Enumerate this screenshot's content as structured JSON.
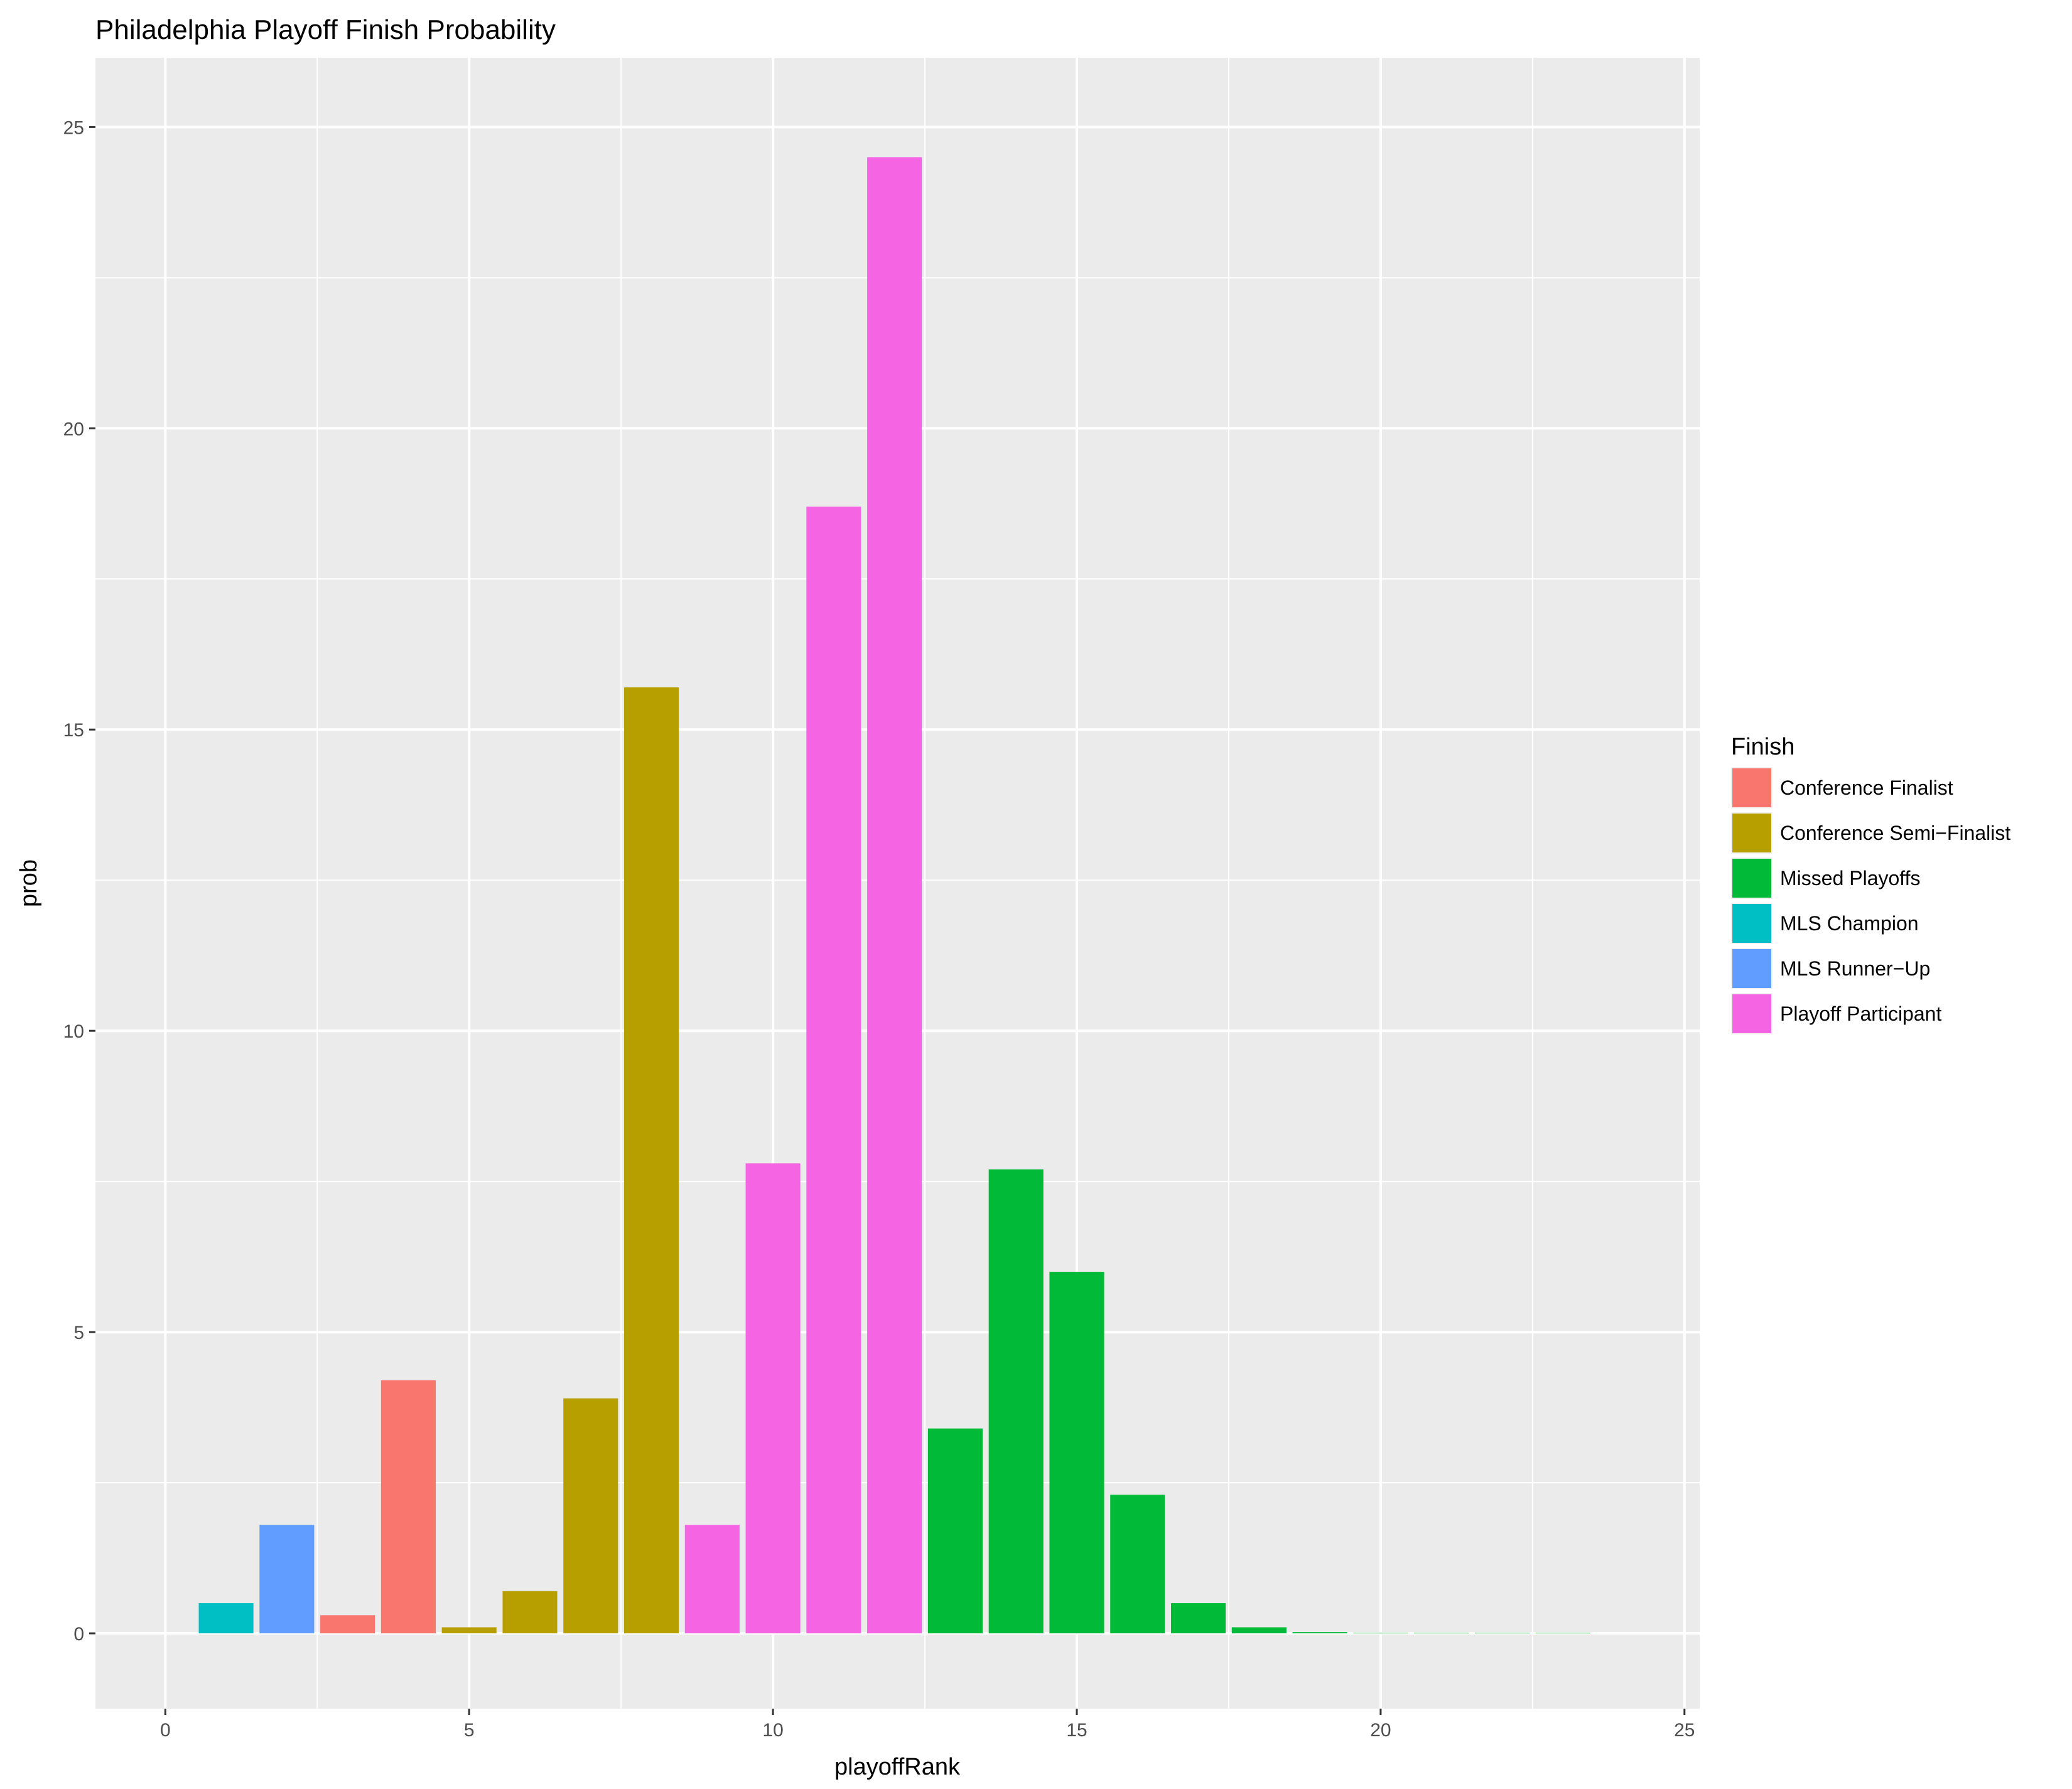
{
  "chart_data": {
    "type": "bar",
    "title": "Philadelphia Playoff Finish Probability",
    "xlabel": "playoffRank",
    "ylabel": "prob",
    "xlim": [
      -1.15,
      25.25
    ],
    "ylim": [
      -1.25,
      26.15
    ],
    "x_ticks": [
      0,
      5,
      10,
      15,
      20,
      25
    ],
    "y_ticks": [
      0,
      5,
      10,
      15,
      20,
      25
    ],
    "grid": true,
    "legend": {
      "title": "Finish",
      "position": "right",
      "entries": [
        {
          "label": "Conference Finalist",
          "color": "#F8766D"
        },
        {
          "label": "Conference Semi−Finalist",
          "color": "#B79F00"
        },
        {
          "label": "Missed Playoffs",
          "color": "#00BA38"
        },
        {
          "label": "MLS Champion",
          "color": "#00BFC4"
        },
        {
          "label": "MLS Runner−Up",
          "color": "#619CFF"
        },
        {
          "label": "Playoff Participant",
          "color": "#F564E3"
        }
      ]
    },
    "bars": [
      {
        "x": 1,
        "value": 0.5,
        "finish": "MLS Champion"
      },
      {
        "x": 2,
        "value": 1.8,
        "finish": "MLS Runner−Up"
      },
      {
        "x": 3,
        "value": 0.3,
        "finish": "Conference Finalist"
      },
      {
        "x": 4,
        "value": 4.2,
        "finish": "Conference Finalist"
      },
      {
        "x": 5,
        "value": 0.1,
        "finish": "Conference Semi−Finalist"
      },
      {
        "x": 6,
        "value": 0.7,
        "finish": "Conference Semi−Finalist"
      },
      {
        "x": 7,
        "value": 3.9,
        "finish": "Conference Semi−Finalist"
      },
      {
        "x": 8,
        "value": 15.7,
        "finish": "Conference Semi−Finalist"
      },
      {
        "x": 9,
        "value": 1.8,
        "finish": "Playoff Participant"
      },
      {
        "x": 10,
        "value": 7.8,
        "finish": "Playoff Participant"
      },
      {
        "x": 11,
        "value": 18.7,
        "finish": "Playoff Participant"
      },
      {
        "x": 12,
        "value": 24.5,
        "finish": "Playoff Participant"
      },
      {
        "x": 13,
        "value": 3.4,
        "finish": "Missed Playoffs"
      },
      {
        "x": 14,
        "value": 7.7,
        "finish": "Missed Playoffs"
      },
      {
        "x": 15,
        "value": 6.0,
        "finish": "Missed Playoffs"
      },
      {
        "x": 16,
        "value": 2.3,
        "finish": "Missed Playoffs"
      },
      {
        "x": 17,
        "value": 0.5,
        "finish": "Missed Playoffs"
      },
      {
        "x": 18,
        "value": 0.1,
        "finish": "Missed Playoffs"
      },
      {
        "x": 19,
        "value": 0.02,
        "finish": "Missed Playoffs"
      },
      {
        "x": 20,
        "value": 0.01,
        "finish": "Missed Playoffs"
      },
      {
        "x": 21,
        "value": 0.01,
        "finish": "Missed Playoffs"
      },
      {
        "x": 22,
        "value": 0.01,
        "finish": "Missed Playoffs"
      },
      {
        "x": 23,
        "value": 0.01,
        "finish": "Missed Playoffs"
      }
    ]
  }
}
